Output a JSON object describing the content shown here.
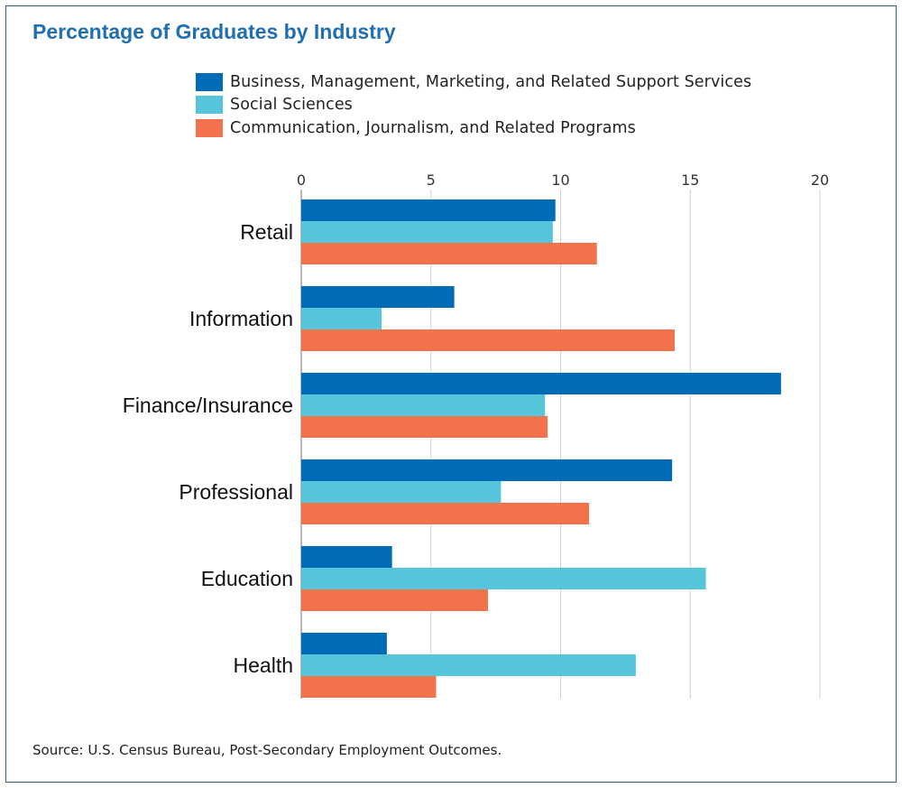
{
  "figure": {
    "title": "Percentage of Graduates by Industry",
    "source": "Source: U.S. Census Bureau, Post-Secondary Employment Outcomes."
  },
  "colors": {
    "title": "#1f6fb2",
    "grid": "#d0d0d0",
    "axis": "#888888"
  },
  "chart_data": {
    "type": "bar",
    "orientation": "horizontal",
    "title": "Percentage of Graduates by Industry",
    "xlabel": "",
    "ylabel": "",
    "xlim": [
      0,
      20
    ],
    "xticks": [
      0,
      5,
      10,
      15,
      20
    ],
    "grid": true,
    "legend_position": "top",
    "categories": [
      "Retail",
      "Information",
      "Finance/Insurance",
      "Professional",
      "Education",
      "Health"
    ],
    "series": [
      {
        "name": "Business, Management, Marketing, and Related Support Services",
        "color": "#006cb7",
        "values": [
          9.8,
          5.9,
          18.5,
          14.3,
          3.5,
          3.3
        ]
      },
      {
        "name": "Social Sciences",
        "color": "#55c6d9",
        "values": [
          9.7,
          3.1,
          9.4,
          7.7,
          15.6,
          12.9
        ]
      },
      {
        "name": "Communication, Journalism, and Related Programs",
        "color": "#f2734b",
        "values": [
          11.4,
          14.4,
          9.5,
          11.1,
          7.2,
          5.2
        ]
      }
    ]
  }
}
